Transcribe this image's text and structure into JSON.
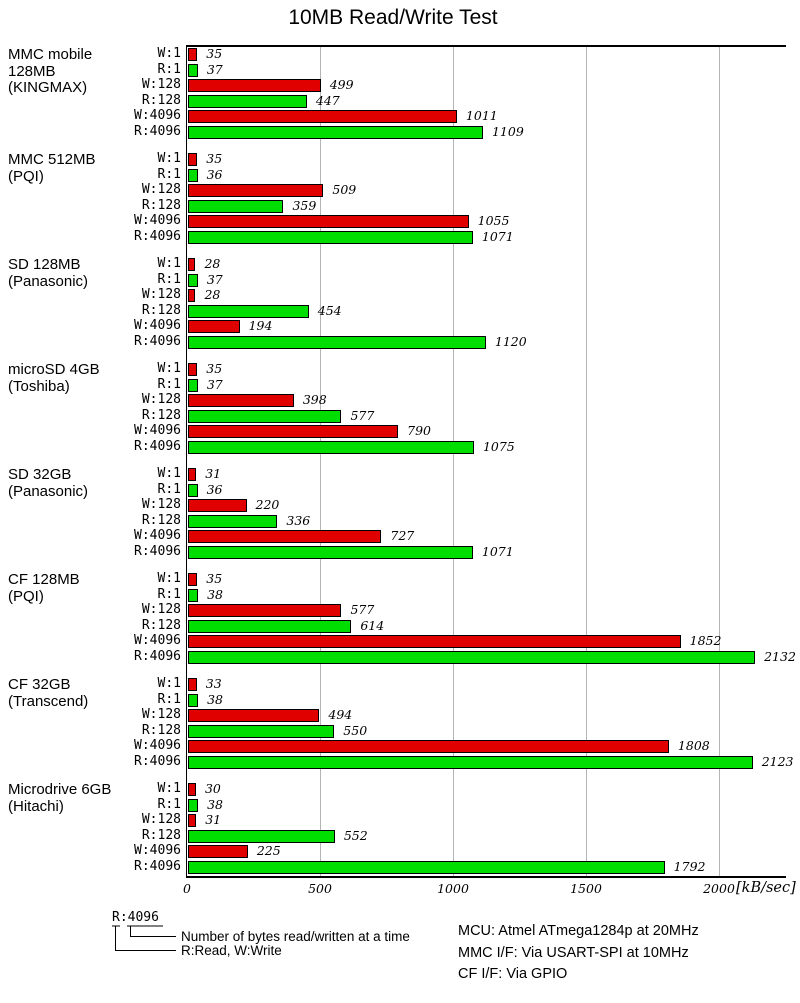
{
  "title": "10MB Read/Write Test",
  "chart_data": {
    "type": "bar",
    "orientation": "horizontal",
    "title": "10MB Read/Write Test",
    "unit_label": "[kB/sec]",
    "xlim": [
      0,
      2250
    ],
    "x_ticks": [
      0,
      500,
      1000,
      1500,
      2000
    ],
    "grid": "vertical-lines",
    "row_categories": [
      "W:1",
      "R:1",
      "W:128",
      "R:128",
      "W:4096",
      "R:4096"
    ],
    "colors": {
      "write": "#e00000",
      "read": "#00dd00"
    },
    "groups": [
      {
        "label_lines": [
          "MMC mobile",
          "128MB",
          "(KINGMAX)"
        ],
        "values": [
          35,
          37,
          499,
          447,
          1011,
          1109
        ]
      },
      {
        "label_lines": [
          "MMC 512MB",
          "(PQI)"
        ],
        "values": [
          35,
          36,
          509,
          359,
          1055,
          1071
        ]
      },
      {
        "label_lines": [
          "SD 128MB",
          "(Panasonic)"
        ],
        "values": [
          28,
          37,
          28,
          454,
          194,
          1120
        ]
      },
      {
        "label_lines": [
          "microSD 4GB",
          "(Toshiba)"
        ],
        "values": [
          35,
          37,
          398,
          577,
          790,
          1075
        ]
      },
      {
        "label_lines": [
          "SD 32GB",
          "(Panasonic)"
        ],
        "values": [
          31,
          36,
          220,
          336,
          727,
          1071
        ]
      },
      {
        "label_lines": [
          "CF 128MB",
          "(PQI)"
        ],
        "values": [
          35,
          38,
          577,
          614,
          1852,
          2132
        ]
      },
      {
        "label_lines": [
          "CF 32GB",
          "(Transcend)"
        ],
        "values": [
          33,
          38,
          494,
          550,
          1808,
          2123
        ]
      },
      {
        "label_lines": [
          "Microdrive 6GB",
          "(Hitachi)"
        ],
        "values": [
          30,
          38,
          31,
          552,
          225,
          1792
        ]
      }
    ]
  },
  "legend": {
    "sample_label": "R:4096",
    "bytes_note": "Number of bytes read/written at a time",
    "rw_note": "R:Read, W:Write"
  },
  "hardware_notes": [
    "MCU: Atmel ATmega1284p at 20MHz",
    "MMC I/F: Via USART-SPI at 10MHz",
    "CF I/F: Via GPIO"
  ]
}
